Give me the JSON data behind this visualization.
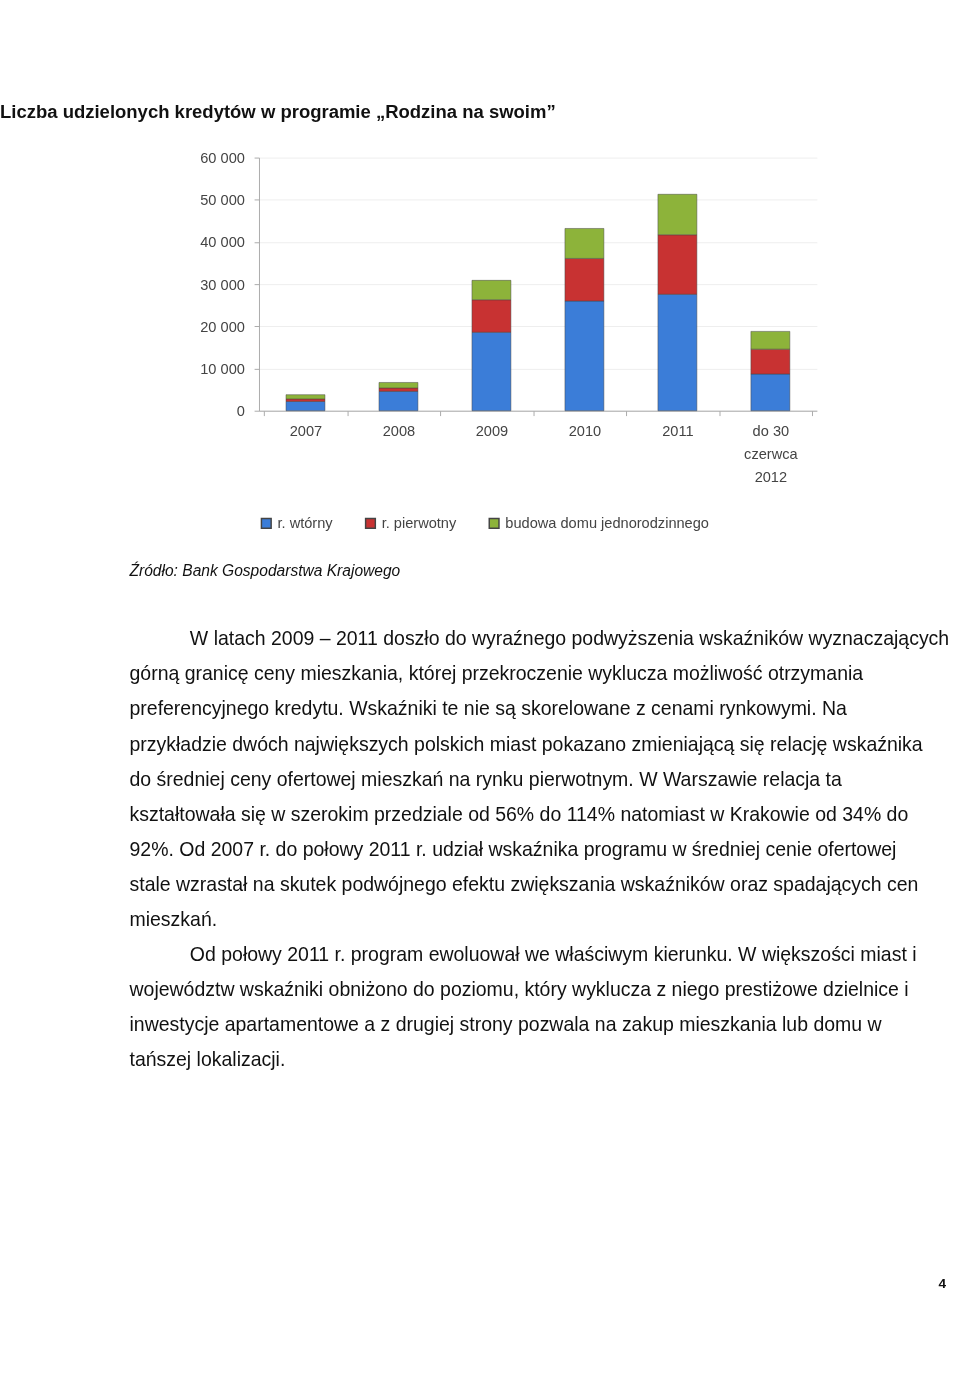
{
  "chart_data": {
    "type": "bar",
    "title": "Liczba udzielonych kredytów w programie „Rodzina na swoim”",
    "categories": [
      "2007",
      "2008",
      "2009",
      "2010",
      "2011",
      "do 30\nczerwca\n2012"
    ],
    "series": [
      {
        "name": "r. wtórny",
        "color": "#3b7dd8",
        "values": [
          2200,
          4600,
          18600,
          26000,
          27600,
          8700
        ]
      },
      {
        "name": "r. pierwotny",
        "color": "#c83232",
        "values": [
          600,
          800,
          7700,
          10100,
          14100,
          5900
        ]
      },
      {
        "name": "budowa domu jednorodzinnego",
        "color": "#8db33a",
        "values": [
          1000,
          1300,
          4600,
          7100,
          9600,
          4200
        ]
      }
    ],
    "stacked": true,
    "ylim": [
      0,
      60000
    ],
    "yticks": [
      {
        "value": 0,
        "label": "0"
      },
      {
        "value": 10000,
        "label": "10 000"
      },
      {
        "value": 20000,
        "label": "20 000"
      },
      {
        "value": 30000,
        "label": "30 000"
      },
      {
        "value": 40000,
        "label": "40 000"
      },
      {
        "value": 50000,
        "label": "50 000"
      },
      {
        "value": 60000,
        "label": "60 000"
      }
    ],
    "grid": "y",
    "legend": "bottom",
    "annotations": [
      "Źródło: Bank Gospodarstwa Krajowego",
      "W latach 2009 – 2011 doszło do wyraźnego podwyższenia wskaźników wyznaczających górną granicę ceny mieszkania, której przekroczenie wyklucza możliwość otrzymania preferencyjnego kredytu. Wskaźniki te nie są skorelowane z cenami rynkowymi. Na przykładzie dwóch największych polskich miast pokazano zmieniającą się relację wskaźnika do średniej ceny ofertowej mieszkań na rynku pierwotnym. W Warszawie relacja ta kształtowała się w szerokim przedziale od 56% do 114% natomiast w Krakowie od 34% do 92%. Od 2007 r. do połowy 2011 r. udział wskaźnika programu w średniej cenie ofertowej stale wzrastał na skutek podwójnego efektu zwiększania wskaźników oraz spadających cen mieszkań.",
      "Od połowy 2011 r. program ewoluował we właściwym kierunku. W większości miast i województw wskaźniki obniżono do poziomu, który wyklucza z niego prestiżowe dzielnice i inwestycje apartamentowe a z drugiej strony pozwala na zakup mieszkania lub domu w tańszej lokalizacji.",
      "4"
    ]
  }
}
